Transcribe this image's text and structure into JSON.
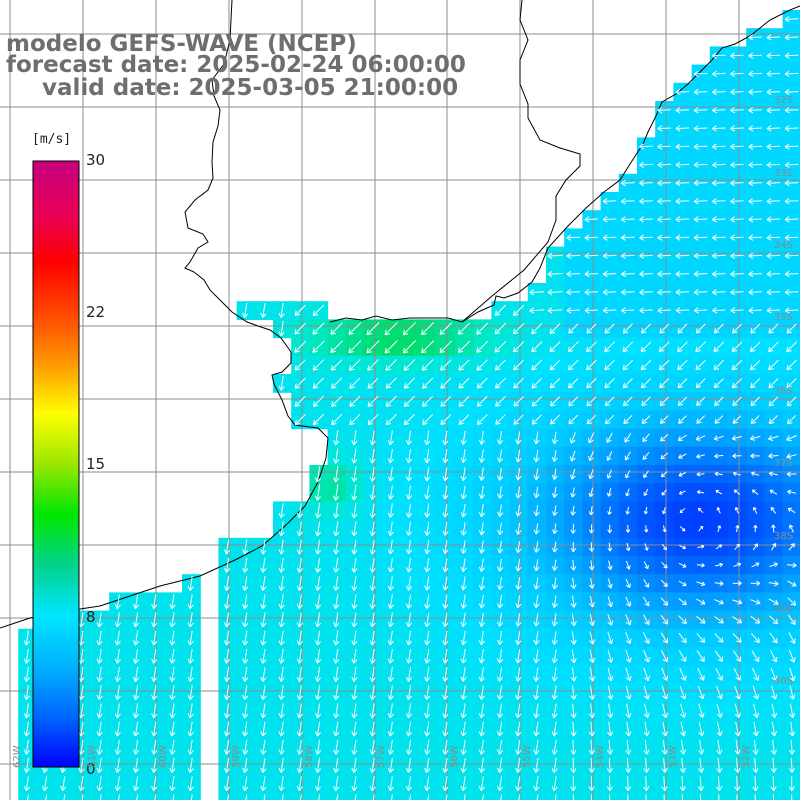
{
  "title": {
    "model": "modelo GEFS-WAVE (NCEP)",
    "forecast": "forecast date: 2025-02-24 06:00:00",
    "valid": "valid date: 2025-03-05 21:00:00"
  },
  "colorbar": {
    "unit": "[m/s]",
    "ticks": [
      "30",
      "22",
      "15",
      "8",
      "0"
    ],
    "tick_values": [
      30,
      22,
      15,
      8,
      0
    ],
    "min": 0,
    "max": 30,
    "colors": [
      "#0000ff",
      "#0066ff",
      "#00b3ff",
      "#00e5ff",
      "#00d28c",
      "#00e600",
      "#9be600",
      "#ffff00",
      "#ff9600",
      "#ff4600",
      "#ff0000",
      "#e6005a",
      "#c8007d"
    ]
  },
  "map": {
    "lat_labels": [
      "32S",
      "33S",
      "34S",
      "35S",
      "36S",
      "37S",
      "38S",
      "39S",
      "40S"
    ],
    "lat_values": [
      32,
      33,
      34,
      35,
      36,
      37,
      38,
      39,
      40
    ],
    "lon_labels": [
      "62W",
      "61W",
      "60W",
      "59W",
      "58W",
      "57W",
      "56W",
      "55W",
      "54W",
      "53W",
      "52W"
    ],
    "lon_values": [
      62,
      61,
      60,
      59,
      58,
      57,
      56,
      55,
      54,
      53,
      52
    ],
    "land_color": "#ffffff",
    "grid_color": "#8c8c8c",
    "coast_color": "#000000",
    "arrow_color": "#ffffff"
  }
}
